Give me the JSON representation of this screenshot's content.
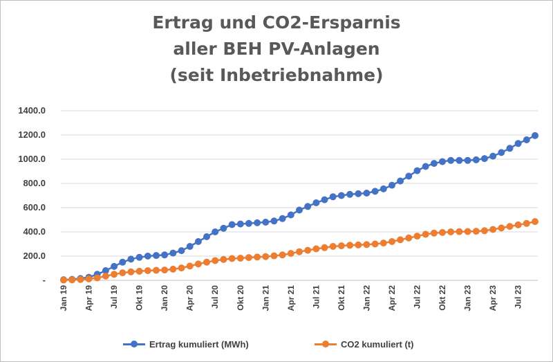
{
  "chart_data": {
    "type": "line",
    "title_lines": [
      "Ertrag und CO2-Ersparnis",
      "aller BEH PV-Anlagen",
      "(seit Inbetriebnahme)"
    ],
    "y_ticks": [
      "-",
      "200.0",
      "400.0",
      "600.0",
      "800.0",
      "1000.0",
      "1200.0",
      "1400.0"
    ],
    "ylim": [
      0,
      1400
    ],
    "x_ticks": [
      {
        "index": 0,
        "label": "Jan 19"
      },
      {
        "index": 3,
        "label": "Apr 19"
      },
      {
        "index": 6,
        "label": "Jul 19"
      },
      {
        "index": 9,
        "label": "Okt 19"
      },
      {
        "index": 12,
        "label": "Jan 20"
      },
      {
        "index": 15,
        "label": "Apr 20"
      },
      {
        "index": 18,
        "label": "Jul 20"
      },
      {
        "index": 21,
        "label": "Okt 20"
      },
      {
        "index": 24,
        "label": "Jan 21"
      },
      {
        "index": 27,
        "label": "Apr 21"
      },
      {
        "index": 30,
        "label": "Jul 21"
      },
      {
        "index": 33,
        "label": "Okt 21"
      },
      {
        "index": 36,
        "label": "Jan 22"
      },
      {
        "index": 39,
        "label": "Apr 22"
      },
      {
        "index": 42,
        "label": "Jul 22"
      },
      {
        "index": 45,
        "label": "Okt 22"
      },
      {
        "index": 48,
        "label": "Jan 23"
      },
      {
        "index": 51,
        "label": "Apr 23"
      },
      {
        "index": 54,
        "label": "Jul 23"
      }
    ],
    "grid": true,
    "legend_position": "bottom",
    "series": [
      {
        "name": "Ertrag kumuliert (MWh)",
        "color": "#4472C4",
        "values": [
          5,
          8,
          15,
          25,
          50,
          80,
          115,
          150,
          175,
          190,
          200,
          205,
          210,
          225,
          245,
          280,
          320,
          360,
          400,
          430,
          460,
          465,
          470,
          475,
          480,
          490,
          510,
          540,
          580,
          610,
          640,
          665,
          690,
          700,
          710,
          715,
          720,
          735,
          755,
          785,
          820,
          860,
          905,
          940,
          965,
          980,
          990,
          990,
          990,
          995,
          1005,
          1025,
          1055,
          1090,
          1130,
          1160,
          1195
        ]
      },
      {
        "name": "CO2 kumuliert (t)",
        "color": "#ED7D31",
        "values": [
          2,
          4,
          7,
          12,
          20,
          35,
          50,
          62,
          70,
          75,
          80,
          83,
          85,
          92,
          102,
          118,
          135,
          150,
          163,
          172,
          180,
          183,
          188,
          192,
          196,
          202,
          210,
          222,
          236,
          248,
          260,
          270,
          280,
          285,
          290,
          292,
          295,
          300,
          308,
          320,
          335,
          350,
          365,
          380,
          390,
          395,
          400,
          402,
          403,
          405,
          410,
          420,
          432,
          445,
          458,
          470,
          485
        ]
      }
    ]
  }
}
